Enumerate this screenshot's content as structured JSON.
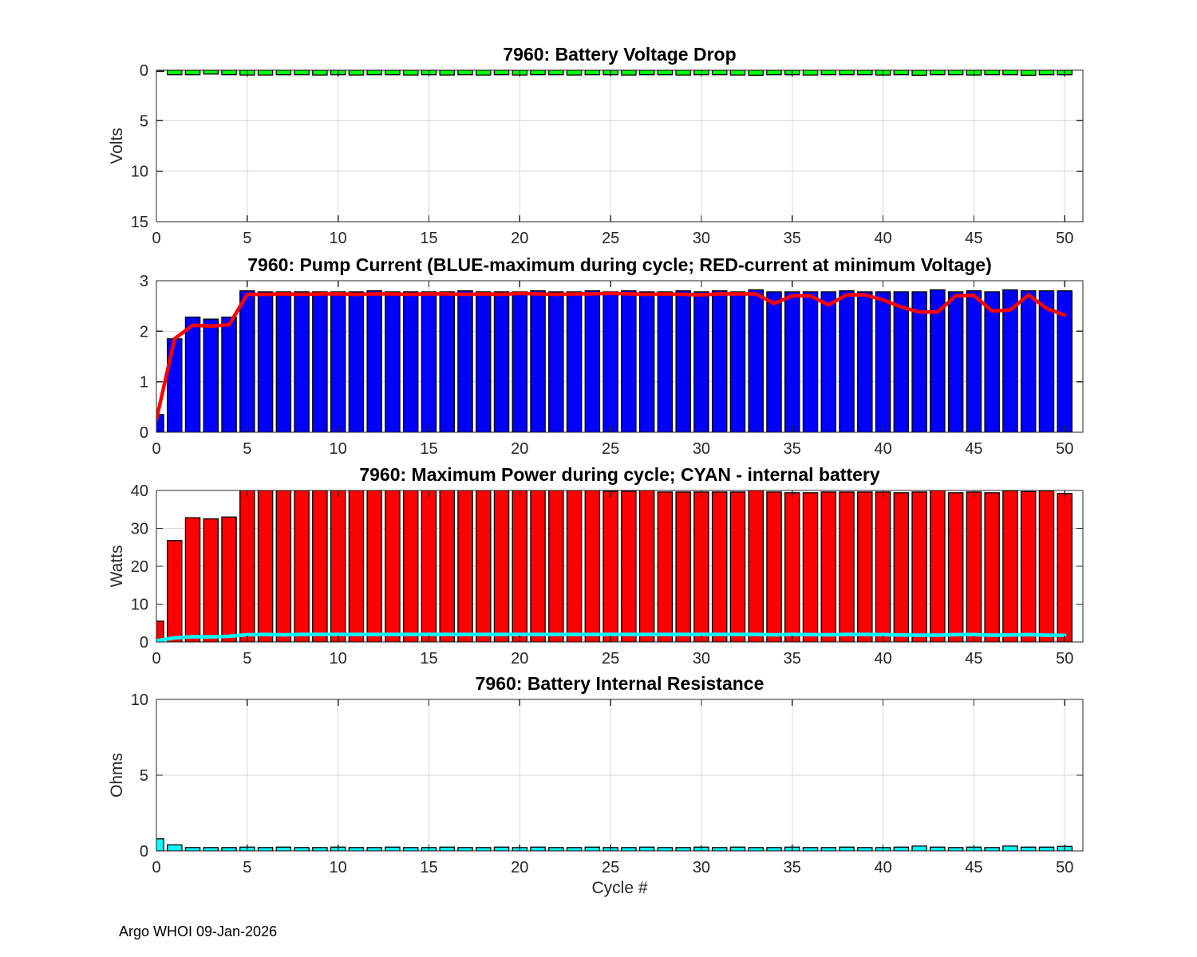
{
  "figure": {
    "footer_text": "Argo WHOI 09-Jan-2026",
    "xlabel": "Cycle #",
    "background": "#ffffff"
  },
  "colors": {
    "green": "#00ff00",
    "blue": "#0000ff",
    "red": "#ff0000",
    "cyan": "#00ffff",
    "bar_edge": "#000000",
    "grid": "#d9d9d9",
    "axis": "#262626"
  },
  "cycles": [
    0,
    1,
    2,
    3,
    4,
    5,
    6,
    7,
    8,
    9,
    10,
    11,
    12,
    13,
    14,
    15,
    16,
    17,
    18,
    19,
    20,
    21,
    22,
    23,
    24,
    25,
    26,
    27,
    28,
    29,
    30,
    31,
    32,
    33,
    34,
    35,
    36,
    37,
    38,
    39,
    40,
    41,
    42,
    43,
    44,
    45,
    46,
    47,
    48,
    49,
    50
  ],
  "chart_data": [
    {
      "type": "bar",
      "title": "7960: Battery Voltage Drop",
      "ylabel": "Volts",
      "bar_color": "#00ff00",
      "xlim": [
        0,
        51
      ],
      "xticks": [
        0,
        5,
        10,
        15,
        20,
        25,
        30,
        35,
        40,
        45,
        50
      ],
      "ylim": [
        0,
        15
      ],
      "yticks": [
        0,
        5,
        10,
        15
      ],
      "y_direction": "reverse",
      "grid": true,
      "values": [
        0.12,
        0.45,
        0.45,
        0.38,
        0.45,
        0.48,
        0.48,
        0.45,
        0.45,
        0.48,
        0.45,
        0.48,
        0.45,
        0.45,
        0.48,
        0.45,
        0.48,
        0.45,
        0.48,
        0.45,
        0.48,
        0.45,
        0.45,
        0.48,
        0.45,
        0.45,
        0.48,
        0.45,
        0.45,
        0.48,
        0.45,
        0.45,
        0.48,
        0.5,
        0.45,
        0.45,
        0.48,
        0.45,
        0.45,
        0.45,
        0.48,
        0.45,
        0.5,
        0.45,
        0.45,
        0.48,
        0.45,
        0.45,
        0.5,
        0.45,
        0.45
      ]
    },
    {
      "type": "bar+line",
      "title": "7960: Pump Current (BLUE-maximum during cycle; RED-current at minimum Voltage)",
      "ylabel": "",
      "series_names": {
        "bar": "maximum current during cycle (BLUE)",
        "line": "current at minimum Voltage (RED)"
      },
      "bar_color": "#0000ff",
      "line_color": "#ff0000",
      "xlim": [
        0,
        51
      ],
      "xticks": [
        0,
        5,
        10,
        15,
        20,
        25,
        30,
        35,
        40,
        45,
        50
      ],
      "ylim": [
        0,
        3
      ],
      "yticks": [
        0,
        1,
        2,
        3
      ],
      "y_direction": "normal",
      "grid": true,
      "values": [
        0.35,
        1.85,
        2.28,
        2.24,
        2.28,
        2.8,
        2.78,
        2.78,
        2.78,
        2.78,
        2.78,
        2.78,
        2.8,
        2.78,
        2.78,
        2.78,
        2.78,
        2.8,
        2.78,
        2.78,
        2.78,
        2.8,
        2.78,
        2.78,
        2.8,
        2.78,
        2.8,
        2.78,
        2.78,
        2.8,
        2.78,
        2.8,
        2.78,
        2.82,
        2.78,
        2.78,
        2.78,
        2.78,
        2.8,
        2.78,
        2.78,
        2.78,
        2.78,
        2.82,
        2.78,
        2.8,
        2.78,
        2.82,
        2.8,
        2.8,
        2.8
      ],
      "line_values": [
        0.25,
        1.85,
        2.12,
        2.1,
        2.13,
        2.73,
        2.73,
        2.74,
        2.73,
        2.74,
        2.74,
        2.73,
        2.74,
        2.74,
        2.73,
        2.74,
        2.74,
        2.73,
        2.74,
        2.73,
        2.75,
        2.74,
        2.73,
        2.74,
        2.74,
        2.75,
        2.74,
        2.73,
        2.74,
        2.73,
        2.72,
        2.74,
        2.74,
        2.74,
        2.55,
        2.7,
        2.7,
        2.52,
        2.72,
        2.72,
        2.62,
        2.48,
        2.38,
        2.38,
        2.7,
        2.71,
        2.4,
        2.42,
        2.72,
        2.45,
        2.32
      ]
    },
    {
      "type": "bar+line",
      "title": "7960: Maximum Power during cycle; CYAN - internal battery",
      "ylabel": "Watts",
      "series_names": {
        "bar": "maximum power during cycle (RED)",
        "line": "internal battery (CYAN)"
      },
      "bar_color": "#ff0000",
      "line_color": "#00ffff",
      "xlim": [
        0,
        51
      ],
      "xticks": [
        0,
        5,
        10,
        15,
        20,
        25,
        30,
        35,
        40,
        45,
        50
      ],
      "ylim": [
        0,
        40
      ],
      "yticks": [
        0,
        10,
        20,
        30,
        40
      ],
      "y_direction": "normal",
      "grid": true,
      "values": [
        5.5,
        26.8,
        32.8,
        32.5,
        33,
        40,
        40,
        40,
        40,
        40,
        40,
        40,
        40,
        40,
        40,
        40,
        40,
        40,
        40,
        40,
        40,
        40,
        40,
        40,
        40,
        39.8,
        39.8,
        40,
        39.6,
        39.6,
        39.6,
        39.6,
        39.6,
        40,
        39.6,
        39.4,
        39.4,
        39.6,
        39.6,
        39.6,
        39.6,
        39.4,
        39.6,
        40,
        39.4,
        39.6,
        39.4,
        39.9,
        39.7,
        39.9,
        39.2
      ],
      "line_values": [
        0.3,
        1.1,
        1.4,
        1.35,
        1.5,
        1.9,
        2,
        1.9,
        2,
        2,
        2,
        2,
        2,
        2,
        2,
        2,
        2,
        2,
        2,
        2,
        2,
        2,
        2,
        2,
        2,
        2,
        2,
        2,
        2,
        2,
        2,
        2,
        2,
        2,
        1.9,
        2,
        1.95,
        1.9,
        2,
        2,
        1.95,
        1.85,
        1.8,
        1.8,
        1.95,
        1.95,
        1.8,
        1.85,
        1.95,
        1.8,
        1.75
      ]
    },
    {
      "type": "bar",
      "title": "7960: Battery Internal Resistance",
      "ylabel": "Ohms",
      "bar_color": "#00ffff",
      "xlim": [
        0,
        51
      ],
      "xticks": [
        0,
        5,
        10,
        15,
        20,
        25,
        30,
        35,
        40,
        45,
        50
      ],
      "ylim": [
        0,
        10
      ],
      "yticks": [
        0,
        5,
        10
      ],
      "y_direction": "normal",
      "grid": true,
      "values": [
        0.8,
        0.4,
        0.22,
        0.22,
        0.22,
        0.25,
        0.22,
        0.25,
        0.22,
        0.22,
        0.25,
        0.22,
        0.22,
        0.25,
        0.22,
        0.22,
        0.25,
        0.22,
        0.22,
        0.25,
        0.22,
        0.25,
        0.22,
        0.22,
        0.25,
        0.22,
        0.22,
        0.25,
        0.22,
        0.22,
        0.25,
        0.22,
        0.25,
        0.22,
        0.22,
        0.25,
        0.22,
        0.22,
        0.25,
        0.22,
        0.22,
        0.25,
        0.32,
        0.25,
        0.22,
        0.25,
        0.22,
        0.32,
        0.25,
        0.25,
        0.3
      ]
    }
  ]
}
